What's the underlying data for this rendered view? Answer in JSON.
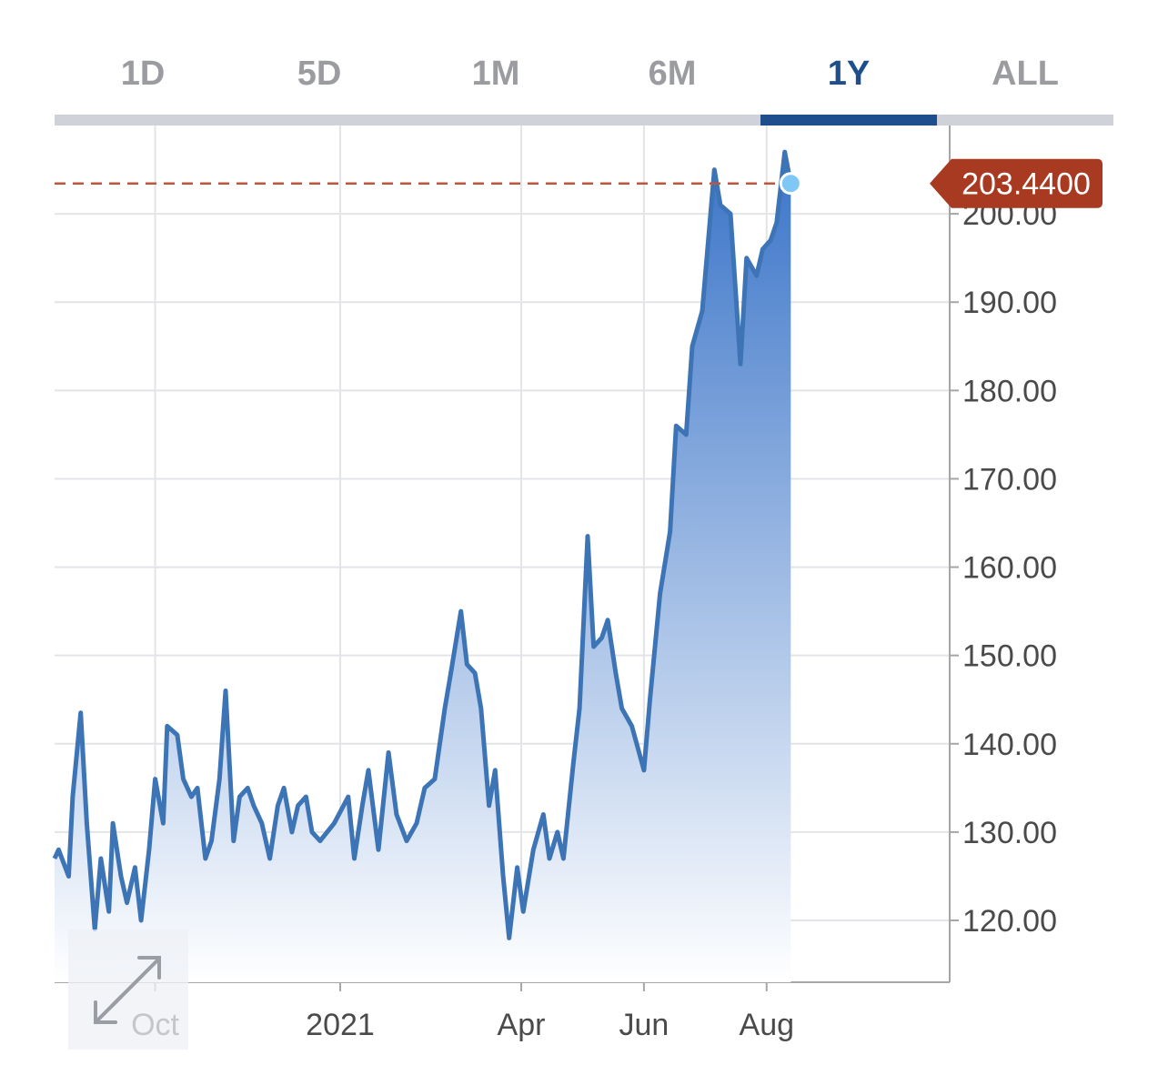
{
  "tabs": [
    {
      "label": "1D",
      "active": false
    },
    {
      "label": "5D",
      "active": false
    },
    {
      "label": "1M",
      "active": false
    },
    {
      "label": "6M",
      "active": false
    },
    {
      "label": "1Y",
      "active": true
    },
    {
      "label": "ALL",
      "active": false
    }
  ],
  "expand_icon": "expand-diagonal-arrows-icon",
  "colors": {
    "line": "#3d74b5",
    "area_top": "#3a74c8",
    "area_bottom": "#ffffff",
    "price_tag": "#a93a22",
    "dashed_line": "#c0553e",
    "current_dot": "#7fc8f5",
    "active_tab": "#1f4e8c",
    "inactive_tab": "#9a9ca0"
  },
  "chart_data": {
    "type": "area",
    "title": "",
    "xlabel": "",
    "ylabel": "",
    "ylim": [
      113,
      210
    ],
    "y_ticks": [
      "120.00",
      "130.00",
      "140.00",
      "150.00",
      "160.00",
      "170.00",
      "180.00",
      "190.00",
      "200.00"
    ],
    "x_ticks": [
      {
        "label": "Oct",
        "date": "2020-10-01"
      },
      {
        "label": "2021",
        "date": "2021-01-01"
      },
      {
        "label": "Apr",
        "date": "2021-04-01"
      },
      {
        "label": "Jun",
        "date": "2021-06-01"
      },
      {
        "label": "Aug",
        "date": "2021-08-01"
      }
    ],
    "current_value": "203.4400",
    "grid": true,
    "series": [
      {
        "x": [
          "2020-08-12",
          "2020-08-14",
          "2020-08-19",
          "2020-08-21",
          "2020-08-25",
          "2020-08-28",
          "2020-09-01",
          "2020-09-04",
          "2020-09-08",
          "2020-09-10",
          "2020-09-14",
          "2020-09-17",
          "2020-09-21",
          "2020-09-24",
          "2020-09-28",
          "2020-10-01",
          "2020-10-05",
          "2020-10-07",
          "2020-10-12",
          "2020-10-15",
          "2020-10-19",
          "2020-10-22",
          "2020-10-26",
          "2020-10-29",
          "2020-11-02",
          "2020-11-05",
          "2020-11-09",
          "2020-11-12",
          "2020-11-16",
          "2020-11-19",
          "2020-11-23",
          "2020-11-27",
          "2020-12-01",
          "2020-12-04",
          "2020-12-08",
          "2020-12-11",
          "2020-12-15",
          "2020-12-18",
          "2020-12-22",
          "2020-12-29",
          "2021-01-05",
          "2021-01-08",
          "2021-01-12",
          "2021-01-15",
          "2021-01-20",
          "2021-01-25",
          "2021-01-29",
          "2021-02-03",
          "2021-02-08",
          "2021-02-12",
          "2021-02-17",
          "2021-02-22",
          "2021-02-25",
          "2021-03-02",
          "2021-03-05",
          "2021-03-09",
          "2021-03-12",
          "2021-03-16",
          "2021-03-19",
          "2021-03-23",
          "2021-03-26",
          "2021-03-30",
          "2021-04-02",
          "2021-04-07",
          "2021-04-12",
          "2021-04-15",
          "2021-04-19",
          "2021-04-22",
          "2021-04-27",
          "2021-04-30",
          "2021-05-04",
          "2021-05-07",
          "2021-05-11",
          "2021-05-14",
          "2021-05-18",
          "2021-05-21",
          "2021-05-26",
          "2021-06-01",
          "2021-06-04",
          "2021-06-09",
          "2021-06-14",
          "2021-06-17",
          "2021-06-22",
          "2021-06-25",
          "2021-06-30",
          "2021-07-06",
          "2021-07-09",
          "2021-07-14",
          "2021-07-19",
          "2021-07-22",
          "2021-07-27",
          "2021-07-30",
          "2021-08-03",
          "2021-08-06",
          "2021-08-10",
          "2021-08-13"
        ],
        "values": [
          127,
          128,
          125,
          134,
          143.5,
          131,
          119,
          127,
          121,
          131,
          125,
          122,
          126,
          120,
          128,
          136,
          131,
          142,
          141,
          136,
          134,
          135,
          127,
          129,
          136,
          146,
          129,
          134,
          135,
          133,
          131,
          127,
          133,
          135,
          130,
          133,
          134,
          130,
          129,
          131,
          134,
          127,
          133,
          137,
          128,
          139,
          132,
          129,
          131,
          135,
          136,
          144,
          148,
          155,
          149,
          148,
          144,
          133,
          137,
          125,
          118,
          126,
          121,
          128,
          132,
          127,
          130,
          127,
          138,
          144,
          163.5,
          151,
          152,
          154,
          148,
          144,
          142,
          137,
          145,
          157,
          164,
          176,
          175,
          185,
          189,
          205,
          201,
          200,
          183,
          195,
          193,
          196,
          197,
          199,
          207,
          203.44
        ]
      }
    ]
  }
}
